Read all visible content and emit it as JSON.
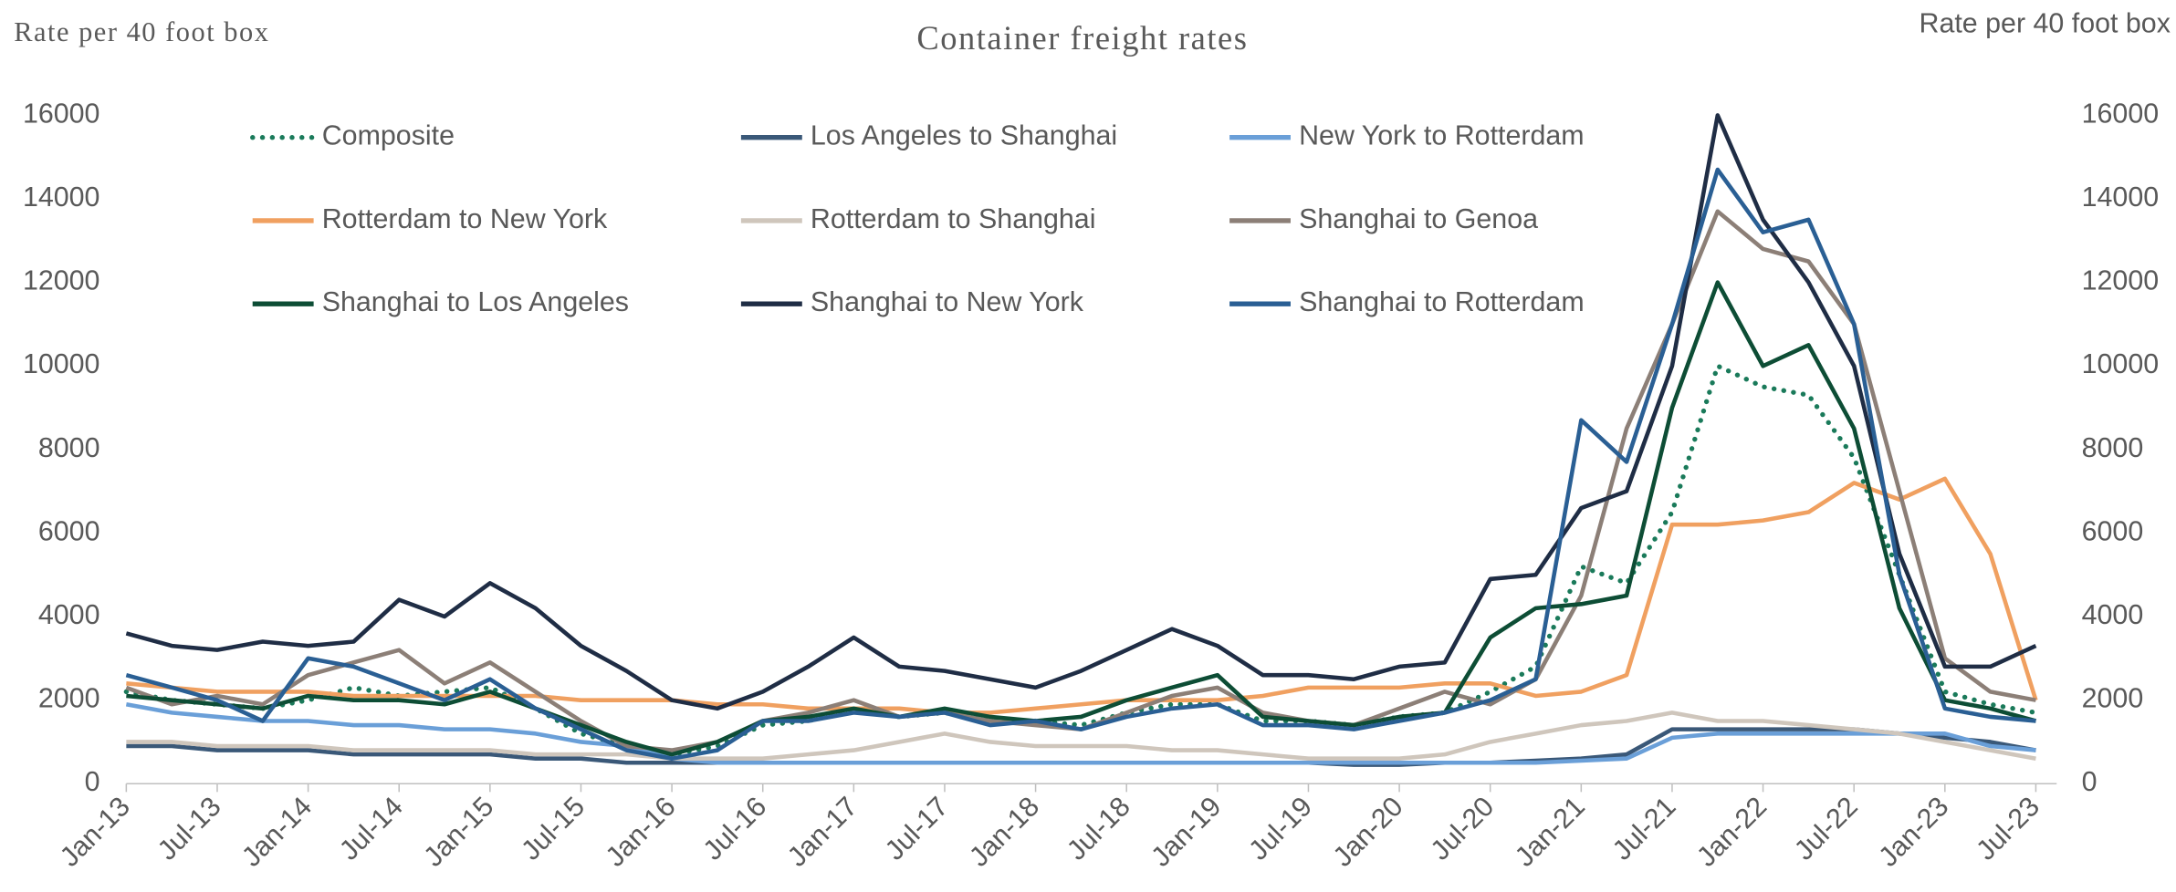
{
  "chart_data": {
    "type": "line",
    "title": "Container freight rates",
    "ylabel": "Rate per 40 foot box",
    "y2label": "Rate per 40 foot box",
    "categories": [
      "Jan-13",
      null,
      "Jul-13",
      null,
      "Jan-14",
      null,
      "Jul-14",
      null,
      "Jan-15",
      null,
      "Jul-15",
      null,
      "Jan-16",
      null,
      "Jul-16",
      null,
      "Jan-17",
      null,
      "Jul-17",
      null,
      "Jan-18",
      null,
      "Jul-18",
      null,
      "Jan-19",
      null,
      "Jul-19",
      null,
      "Jan-20",
      null,
      "Jul-20",
      null,
      "Jan-21",
      null,
      "Jul-21",
      null,
      "Jan-22",
      null,
      "Jul-22",
      null,
      "Jan-23",
      null,
      "Jul-23"
    ],
    "ylim": [
      0,
      16000
    ],
    "yticks": [
      0,
      2000,
      4000,
      6000,
      8000,
      10000,
      12000,
      14000,
      16000
    ],
    "y2lim": [
      0,
      16000
    ],
    "y2ticks": [
      0,
      2000,
      4000,
      6000,
      8000,
      10000,
      12000,
      14000,
      16000
    ],
    "legend": "top",
    "series": [
      {
        "name": "Composite",
        "color": "#1a7a5a",
        "dash": "dotted",
        "values": [
          2200,
          2000,
          1900,
          1800,
          2000,
          2300,
          2100,
          2200,
          2300,
          1800,
          1200,
          900,
          700,
          900,
          1400,
          1500,
          1800,
          1600,
          1700,
          1500,
          1500,
          1400,
          1700,
          1900,
          1900,
          1500,
          1500,
          1400,
          1600,
          1700,
          2200,
          2800,
          5200,
          4800,
          6500,
          10000,
          9500,
          9300,
          7800,
          5000,
          2200,
          1900,
          1700
        ]
      },
      {
        "name": "Los Angeles to Shanghai",
        "color": "#3a5878",
        "values": [
          900,
          900,
          800,
          800,
          800,
          700,
          700,
          700,
          700,
          600,
          600,
          500,
          500,
          500,
          500,
          500,
          500,
          500,
          500,
          500,
          500,
          500,
          500,
          500,
          500,
          500,
          500,
          450,
          450,
          500,
          500,
          550,
          600,
          700,
          1300,
          1300,
          1300,
          1300,
          1300,
          1200,
          1100,
          1000,
          800
        ]
      },
      {
        "name": "New York to Rotterdam",
        "color": "#6a9fd8",
        "values": [
          1900,
          1700,
          1600,
          1500,
          1500,
          1400,
          1400,
          1300,
          1300,
          1200,
          1000,
          900,
          600,
          500,
          500,
          500,
          500,
          500,
          500,
          500,
          500,
          500,
          500,
          500,
          500,
          500,
          500,
          500,
          500,
          500,
          500,
          500,
          550,
          600,
          1100,
          1200,
          1200,
          1200,
          1200,
          1200,
          1200,
          900,
          800
        ]
      },
      {
        "name": "Rotterdam to New York",
        "color": "#f0a060",
        "values": [
          2400,
          2300,
          2200,
          2200,
          2200,
          2100,
          2100,
          2100,
          2100,
          2100,
          2000,
          2000,
          2000,
          1900,
          1900,
          1800,
          1800,
          1800,
          1700,
          1700,
          1800,
          1900,
          2000,
          2000,
          2000,
          2100,
          2300,
          2300,
          2300,
          2400,
          2400,
          2100,
          2200,
          2600,
          6200,
          6200,
          6300,
          6500,
          7200,
          6800,
          7300,
          5500,
          2000
        ]
      },
      {
        "name": "Rotterdam to Shanghai",
        "color": "#cfc6bc",
        "values": [
          1000,
          1000,
          900,
          900,
          900,
          800,
          800,
          800,
          800,
          700,
          700,
          700,
          600,
          600,
          600,
          700,
          800,
          1000,
          1200,
          1000,
          900,
          900,
          900,
          800,
          800,
          700,
          600,
          600,
          600,
          700,
          1000,
          1200,
          1400,
          1500,
          1700,
          1500,
          1500,
          1400,
          1300,
          1200,
          1000,
          800,
          600
        ]
      },
      {
        "name": "Shanghai to Genoa",
        "color": "#8c7f77",
        "values": [
          2300,
          1900,
          2100,
          1900,
          2600,
          2900,
          3200,
          2400,
          2900,
          2200,
          1500,
          900,
          800,
          1000,
          1500,
          1700,
          2000,
          1600,
          1700,
          1500,
          1400,
          1300,
          1700,
          2100,
          2300,
          1700,
          1500,
          1400,
          1800,
          2200,
          1900,
          2500,
          4500,
          8500,
          11000,
          13700,
          12800,
          12500,
          11000,
          7000,
          3000,
          2200,
          2000
        ]
      },
      {
        "name": "Shanghai to Los Angeles",
        "color": "#0d4d35",
        "values": [
          2100,
          2000,
          1900,
          1800,
          2100,
          2000,
          2000,
          1900,
          2200,
          1800,
          1400,
          1000,
          700,
          1000,
          1500,
          1600,
          1800,
          1600,
          1800,
          1600,
          1500,
          1600,
          2000,
          2300,
          2600,
          1600,
          1500,
          1400,
          1600,
          1700,
          3500,
          4200,
          4300,
          4500,
          9000,
          12000,
          10000,
          10500,
          8500,
          4200,
          2000,
          1800,
          1500
        ]
      },
      {
        "name": "Shanghai to New York",
        "color": "#1f2d45",
        "values": [
          3600,
          3300,
          3200,
          3400,
          3300,
          3400,
          4400,
          4000,
          4800,
          4200,
          3300,
          2700,
          2000,
          1800,
          2200,
          2800,
          3500,
          2800,
          2700,
          2500,
          2300,
          2700,
          3200,
          3700,
          3300,
          2600,
          2600,
          2500,
          2800,
          2900,
          4900,
          5000,
          6600,
          7000,
          10000,
          16000,
          13500,
          12000,
          10000,
          5500,
          2800,
          2800,
          3300
        ]
      },
      {
        "name": "Shanghai to Rotterdam",
        "color": "#2a5f94",
        "values": [
          2600,
          2300,
          2000,
          1500,
          3000,
          2800,
          2400,
          2000,
          2500,
          1800,
          1300,
          800,
          600,
          800,
          1500,
          1500,
          1700,
          1600,
          1700,
          1400,
          1500,
          1300,
          1600,
          1800,
          1900,
          1400,
          1400,
          1300,
          1500,
          1700,
          2000,
          2500,
          8700,
          7700,
          11000,
          14700,
          13200,
          13500,
          11000,
          5000,
          1800,
          1600,
          1500
        ]
      }
    ]
  }
}
